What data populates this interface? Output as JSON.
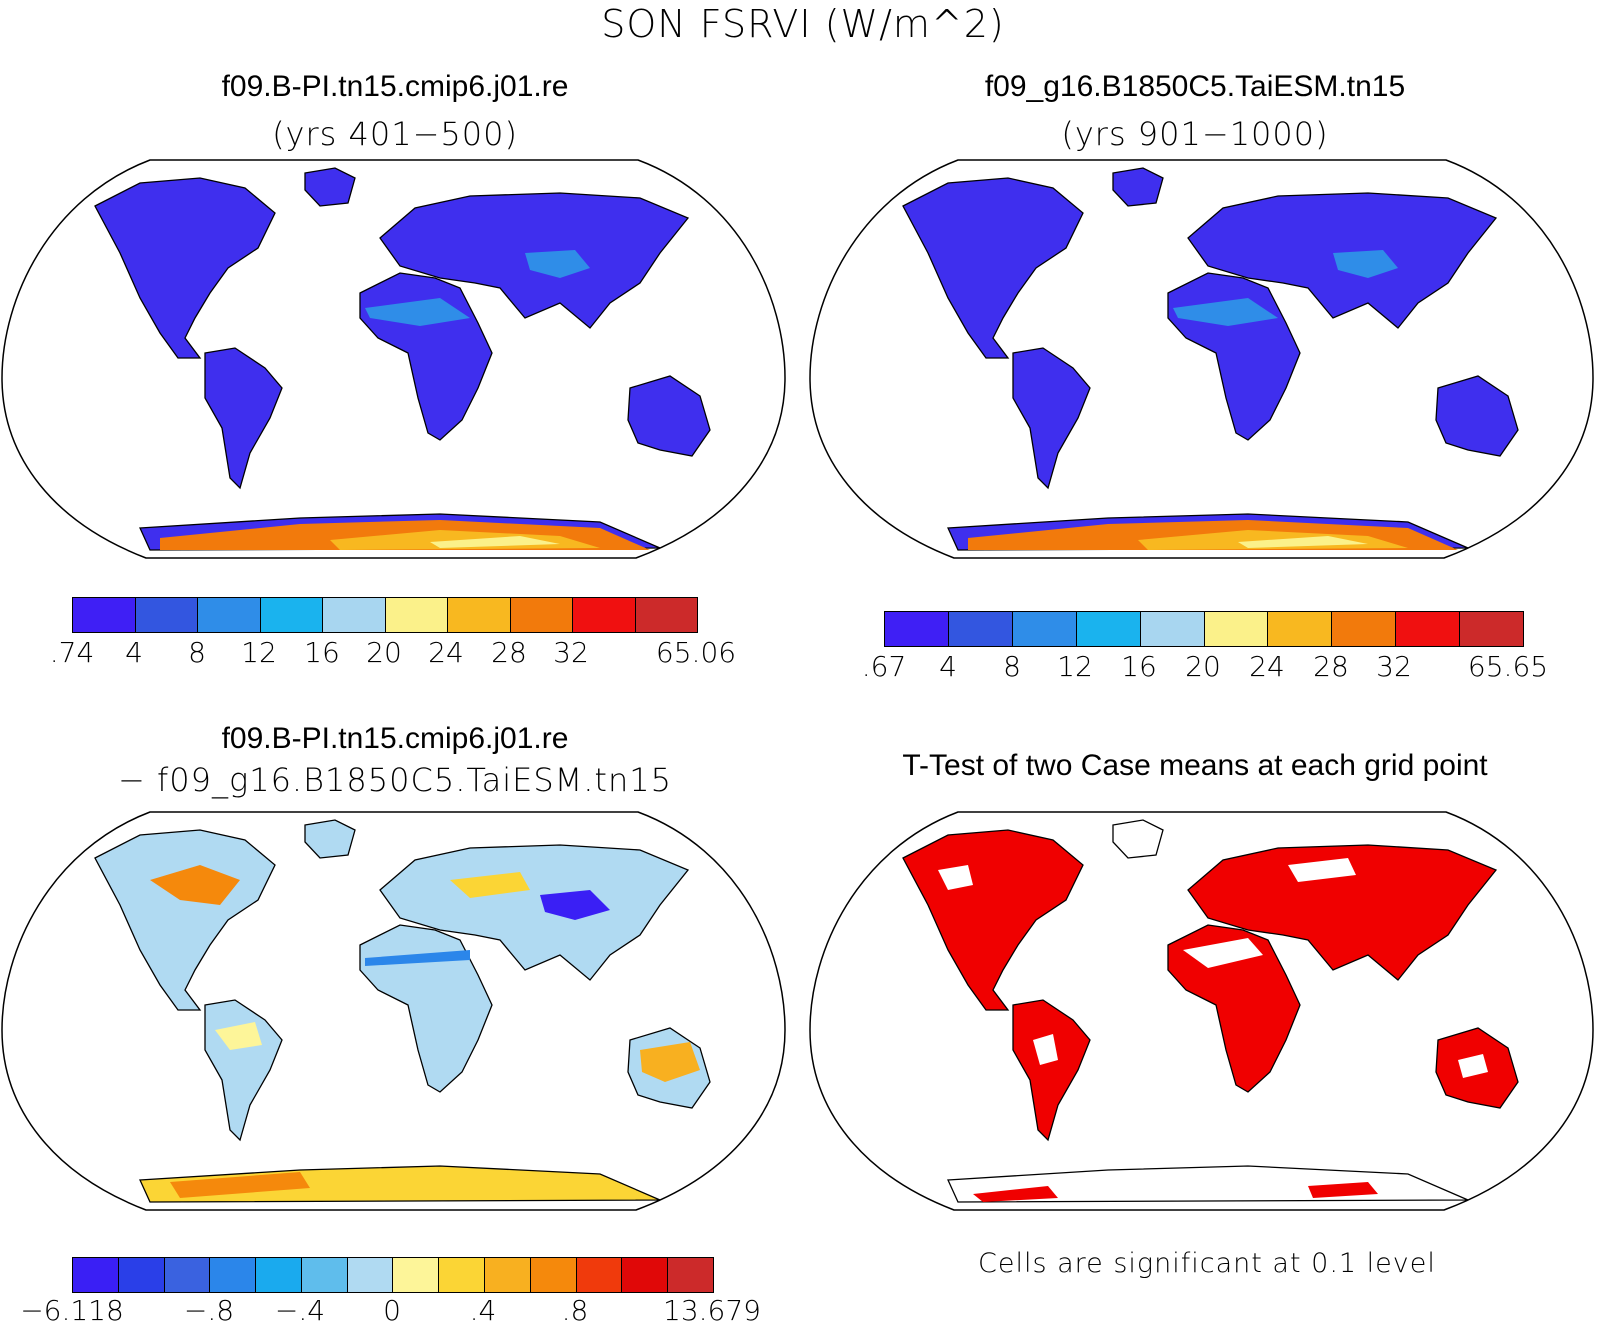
{
  "title": "SON FSRVI (W/m^2)",
  "panels": {
    "case1": {
      "title": "f09.B-PI.tn15.cmip6.j01.re",
      "subtitle": "(yrs 401−500)"
    },
    "case2": {
      "title": "f09_g16.B1850C5.TaiESM.tn15",
      "subtitle": "(yrs 901−1000)"
    },
    "diff": {
      "title": "f09.B-PI.tn15.cmip6.j01.re",
      "subtitle": "− f09_g16.B1850C5.TaiESM.tn15"
    },
    "ttest": {
      "title": "T-Test of two Case means at each grid point",
      "note": "Cells are significant at 0.1 level"
    }
  },
  "colorbars": {
    "case1": {
      "colors": [
        "#3f1ff5",
        "#3356e0",
        "#2f8de8",
        "#1ab3ee",
        "#a8d6f0",
        "#fbf18a",
        "#f8b820",
        "#f27a0c",
        "#f01010",
        "#cc2a2a"
      ],
      "labels": [
        ".74",
        "4",
        "8",
        "12",
        "16",
        "20",
        "24",
        "28",
        "32",
        "65.06"
      ]
    },
    "case2": {
      "colors": [
        "#3f1ff5",
        "#3356e0",
        "#2f8de8",
        "#1ab3ee",
        "#a8d6f0",
        "#fbf18a",
        "#f8b820",
        "#f27a0c",
        "#f01010",
        "#cc2a2a"
      ],
      "labels": [
        ".67",
        "4",
        "8",
        "12",
        "16",
        "20",
        "24",
        "28",
        "32",
        "65.65"
      ]
    },
    "diff": {
      "colors": [
        "#3a1ff5",
        "#2a3fe8",
        "#3a62e0",
        "#2b86ea",
        "#1aaaee",
        "#5fbdec",
        "#b0daf2",
        "#fdf599",
        "#fbd535",
        "#f8b020",
        "#f5890c",
        "#f03a0c",
        "#e00808",
        "#cc2a2a"
      ],
      "labels": [
        "−6.118",
        "−.8",
        "−.4",
        "0",
        ".4",
        ".8",
        "13.679"
      ]
    }
  }
}
